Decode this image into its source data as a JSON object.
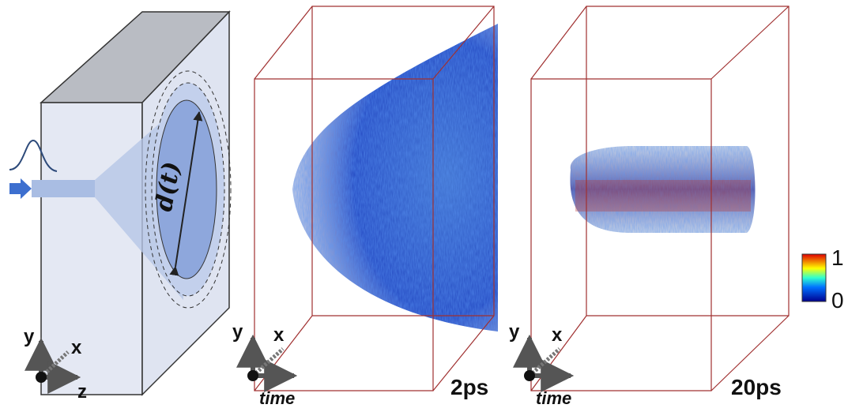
{
  "panels": [
    {
      "label": "d(t)",
      "axes": {
        "y": "y",
        "x": "x",
        "z": "z"
      }
    },
    {
      "axes": {
        "y": "y",
        "x": "x",
        "time": "time"
      },
      "caption": "2ps"
    },
    {
      "axes": {
        "y": "y",
        "x": "x",
        "time": "time"
      },
      "caption": "20ps"
    }
  ],
  "colorbar": {
    "max_label": "1",
    "min_label": "0"
  }
}
